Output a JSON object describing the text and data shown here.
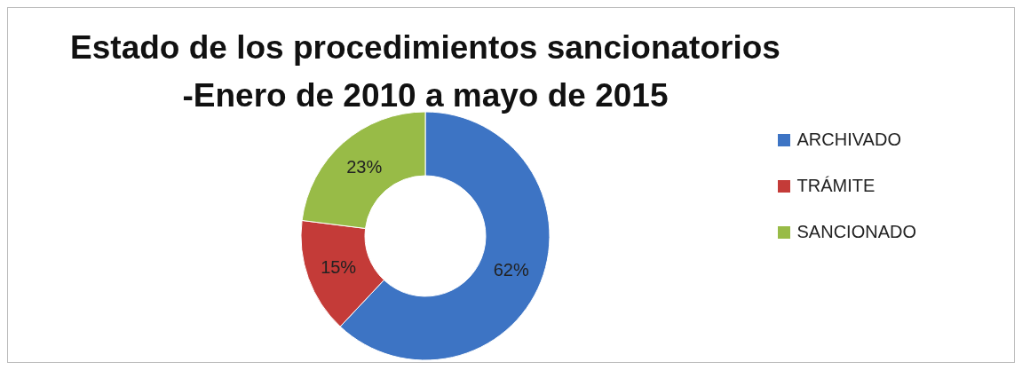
{
  "chart_data": {
    "type": "donut",
    "title": "Estado de los procedimientos sancionatorios\n-Enero de 2010 a mayo de 2015",
    "categories": [
      "ARCHIVADO",
      "TRÁMITE",
      "SANCIONADO"
    ],
    "values": [
      62,
      15,
      23
    ],
    "colors": [
      "#3d74c4",
      "#c43b38",
      "#98bb47"
    ],
    "value_labels": [
      "62%",
      "15%",
      "23%"
    ],
    "legend": "right"
  }
}
